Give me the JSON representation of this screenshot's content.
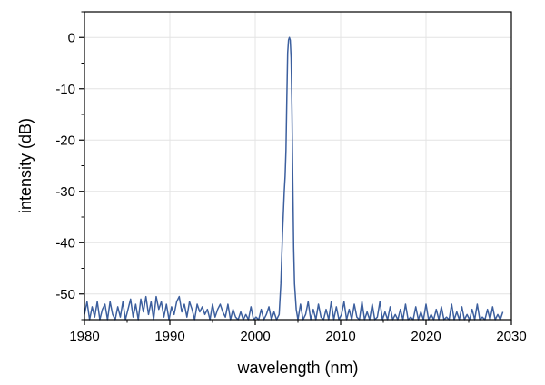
{
  "chart_data": {
    "type": "line",
    "title": "",
    "xlabel": "wavelength (nm)",
    "ylabel": "intensity (dB)",
    "xlim": [
      1980,
      2030
    ],
    "ylim": [
      -55,
      5
    ],
    "xticks": [
      1980,
      1990,
      2000,
      2010,
      2020,
      2030
    ],
    "yticks": [
      0,
      -10,
      -20,
      -30,
      -40,
      -50
    ],
    "grid": true,
    "legend": "none",
    "colors": {
      "line": "#3c5f9e",
      "grid": "#e4e4e4",
      "axis": "#000000"
    },
    "series": [
      {
        "x": [
          1980.0,
          1980.3,
          1980.6,
          1980.9,
          1981.2,
          1981.5,
          1981.8,
          1982.1,
          1982.4,
          1982.7,
          1983.0,
          1983.3,
          1983.6,
          1983.9,
          1984.2,
          1984.5,
          1984.8,
          1985.1,
          1985.4,
          1985.7,
          1986.0,
          1986.3,
          1986.6,
          1986.9,
          1987.2,
          1987.5,
          1987.8,
          1988.1,
          1988.4,
          1988.7,
          1989.0,
          1989.3,
          1989.6,
          1989.9,
          1990.2,
          1990.5,
          1990.8,
          1991.1,
          1991.4,
          1991.7,
          1992.0,
          1992.3,
          1992.6,
          1992.9,
          1993.2,
          1993.5,
          1993.8,
          1994.1,
          1994.4,
          1994.7,
          1995.0,
          1995.3,
          1995.6,
          1995.9,
          1996.2,
          1996.5,
          1996.8,
          1997.1,
          1997.4,
          1997.7,
          1998.0,
          1998.3,
          1998.6,
          1998.9,
          1999.2,
          1999.5,
          1999.8,
          2000.1,
          2000.4,
          2000.7,
          2001.0,
          2001.3,
          2001.6,
          2001.9,
          2002.2,
          2002.5,
          2002.8,
          2003.0,
          2003.2,
          2003.4,
          2003.5,
          2003.6,
          2003.7,
          2003.8,
          2003.9,
          2004.0,
          2004.1,
          2004.2,
          2004.3,
          2004.4,
          2004.5,
          2004.6,
          2004.8,
          2005.0,
          2005.3,
          2005.6,
          2005.9,
          2006.2,
          2006.5,
          2006.8,
          2007.1,
          2007.4,
          2007.7,
          2008.0,
          2008.3,
          2008.6,
          2008.9,
          2009.2,
          2009.5,
          2009.8,
          2010.1,
          2010.4,
          2010.7,
          2011.0,
          2011.3,
          2011.6,
          2011.9,
          2012.2,
          2012.5,
          2012.8,
          2013.1,
          2013.4,
          2013.7,
          2014.0,
          2014.3,
          2014.6,
          2014.9,
          2015.2,
          2015.5,
          2015.8,
          2016.1,
          2016.4,
          2016.7,
          2017.0,
          2017.3,
          2017.6,
          2017.9,
          2018.2,
          2018.5,
          2018.8,
          2019.1,
          2019.4,
          2019.7,
          2020.0,
          2020.3,
          2020.6,
          2020.9,
          2021.2,
          2021.5,
          2021.8,
          2022.1,
          2022.4,
          2022.7,
          2023.0,
          2023.3,
          2023.6,
          2023.9,
          2024.2,
          2024.5,
          2024.8,
          2025.1,
          2025.4,
          2025.7,
          2026.0,
          2026.3,
          2026.6,
          2026.9,
          2027.2,
          2027.5,
          2027.8,
          2028.1,
          2028.4,
          2028.7,
          2029.0
        ],
        "y": [
          -54,
          -51.5,
          -55,
          -52.5,
          -54.5,
          -51.5,
          -55,
          -53,
          -52,
          -55,
          -51.5,
          -54,
          -55,
          -52.5,
          -54.5,
          -51.5,
          -55,
          -53,
          -51,
          -54.5,
          -52,
          -55,
          -51,
          -53.5,
          -50.5,
          -54,
          -51.5,
          -55,
          -50.5,
          -53,
          -51.5,
          -54.5,
          -52,
          -55,
          -52.5,
          -54,
          -51.5,
          -50.5,
          -53.5,
          -52,
          -54.5,
          -51.5,
          -53,
          -55,
          -52,
          -53.5,
          -52.5,
          -54,
          -53,
          -55,
          -52,
          -54.5,
          -53,
          -52,
          -53.5,
          -54.5,
          -52,
          -55,
          -53,
          -54.5,
          -55,
          -53.5,
          -55,
          -54,
          -55,
          -52.5,
          -55,
          -54.5,
          -55,
          -53,
          -55,
          -54,
          -52.5,
          -55,
          -53.5,
          -55,
          -54,
          -48,
          -38,
          -30,
          -27,
          -22,
          -12,
          -3,
          -0.5,
          0,
          -0.5,
          -4,
          -14,
          -28,
          -41,
          -48,
          -53,
          -55,
          -52,
          -55,
          -54,
          -51.5,
          -55,
          -53,
          -55,
          -52,
          -54.5,
          -55,
          -53,
          -55,
          -51.5,
          -55,
          -52.5,
          -55,
          -54,
          -51.5,
          -55,
          -53,
          -55,
          -52,
          -54.5,
          -55,
          -51.5,
          -55,
          -53.5,
          -55,
          -52,
          -55,
          -54.5,
          -51.5,
          -55,
          -53.5,
          -55,
          -52.5,
          -55,
          -54,
          -55,
          -53,
          -55,
          -52,
          -55,
          -54.5,
          -55,
          -52.5,
          -55,
          -53.5,
          -55,
          -52,
          -55,
          -54,
          -55,
          -53,
          -55,
          -52.5,
          -55,
          -54.5,
          -55,
          -52,
          -55,
          -53.5,
          -55,
          -52.5,
          -55,
          -54,
          -55,
          -53,
          -55,
          -52,
          -55,
          -54.5,
          -55,
          -53,
          -55,
          -52.5,
          -55,
          -54,
          -55,
          -53.5
        ]
      }
    ]
  }
}
